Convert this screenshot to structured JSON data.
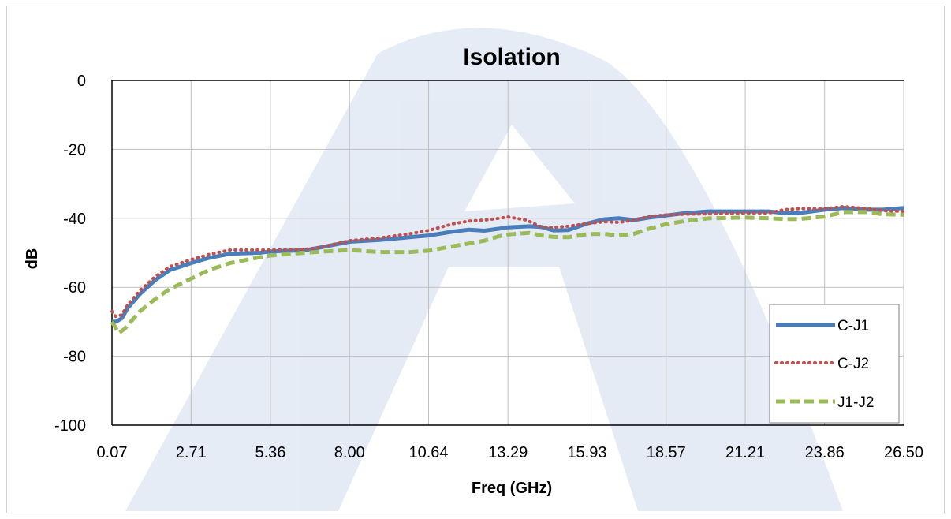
{
  "chart_data": {
    "type": "line",
    "title": "Isolation",
    "xlabel": "Freq (GHz)",
    "ylabel": "dB",
    "xlim": [
      0.07,
      26.5
    ],
    "ylim": [
      -100,
      0
    ],
    "x_ticks": [
      "0.07",
      "2.71",
      "5.36",
      "8.00",
      "10.64",
      "13.29",
      "15.93",
      "18.57",
      "21.21",
      "23.86",
      "26.50"
    ],
    "y_ticks": [
      "0",
      "-20",
      "-40",
      "-60",
      "-80",
      "-100"
    ],
    "grid": true,
    "legend_position": "bottom-right",
    "series": [
      {
        "name": "C-J1",
        "color": "#4a7ebb",
        "style": "solid",
        "points": [
          [
            0.07,
            -70
          ],
          [
            0.2,
            -70
          ],
          [
            0.4,
            -69
          ],
          [
            0.6,
            -66
          ],
          [
            1.0,
            -62
          ],
          [
            1.5,
            -58
          ],
          [
            2.0,
            -55
          ],
          [
            2.71,
            -53
          ],
          [
            3.3,
            -51.5
          ],
          [
            4.0,
            -50.3
          ],
          [
            5.0,
            -50
          ],
          [
            5.36,
            -49.6
          ],
          [
            6.5,
            -49.3
          ],
          [
            7.0,
            -48.5
          ],
          [
            8.0,
            -46.8
          ],
          [
            9.0,
            -46.3
          ],
          [
            10.0,
            -45.5
          ],
          [
            10.64,
            -45
          ],
          [
            11.5,
            -43.8
          ],
          [
            12.0,
            -43.3
          ],
          [
            12.5,
            -43.6
          ],
          [
            13.0,
            -43
          ],
          [
            13.29,
            -42.6
          ],
          [
            14.0,
            -42.3
          ],
          [
            14.4,
            -42.5
          ],
          [
            14.8,
            -43.5
          ],
          [
            15.3,
            -43.4
          ],
          [
            15.93,
            -41.5
          ],
          [
            16.5,
            -40.3
          ],
          [
            17.0,
            -40
          ],
          [
            17.5,
            -40.5
          ],
          [
            18.0,
            -39.8
          ],
          [
            18.57,
            -39.2
          ],
          [
            19.2,
            -38.5
          ],
          [
            20.0,
            -38
          ],
          [
            21.21,
            -38
          ],
          [
            22.0,
            -38
          ],
          [
            22.5,
            -38.5
          ],
          [
            23.0,
            -38.5
          ],
          [
            23.86,
            -37.5
          ],
          [
            24.5,
            -37
          ],
          [
            25.3,
            -37.5
          ],
          [
            25.8,
            -37.5
          ],
          [
            26.5,
            -37
          ]
        ]
      },
      {
        "name": "C-J2",
        "color": "#c0504d",
        "style": "dotted",
        "points": [
          [
            0.07,
            -67
          ],
          [
            0.2,
            -68.5
          ],
          [
            0.4,
            -68
          ],
          [
            0.6,
            -65
          ],
          [
            1.0,
            -61
          ],
          [
            1.5,
            -57
          ],
          [
            2.0,
            -54
          ],
          [
            2.71,
            -52
          ],
          [
            3.3,
            -50.5
          ],
          [
            4.0,
            -49.2
          ],
          [
            5.0,
            -49.2
          ],
          [
            5.36,
            -49.2
          ],
          [
            6.5,
            -49
          ],
          [
            7.0,
            -48.5
          ],
          [
            8.0,
            -46.5
          ],
          [
            9.0,
            -45.7
          ],
          [
            10.0,
            -44.5
          ],
          [
            10.64,
            -43.5
          ],
          [
            11.5,
            -41.5
          ],
          [
            12.0,
            -40.8
          ],
          [
            12.5,
            -40.5
          ],
          [
            13.0,
            -40
          ],
          [
            13.29,
            -39.6
          ],
          [
            13.9,
            -40.5
          ],
          [
            14.4,
            -42.5
          ],
          [
            14.8,
            -42.6
          ],
          [
            15.3,
            -42.3
          ],
          [
            15.93,
            -41.5
          ],
          [
            16.5,
            -41
          ],
          [
            17.0,
            -41.2
          ],
          [
            17.5,
            -40.5
          ],
          [
            18.0,
            -39.5
          ],
          [
            18.57,
            -39
          ],
          [
            19.2,
            -38.8
          ],
          [
            20.0,
            -38.7
          ],
          [
            21.21,
            -38.5
          ],
          [
            22.0,
            -38.5
          ],
          [
            22.5,
            -37.5
          ],
          [
            23.0,
            -37.2
          ],
          [
            23.86,
            -37.2
          ],
          [
            24.5,
            -36.6
          ],
          [
            25.3,
            -37.2
          ],
          [
            25.8,
            -37.8
          ],
          [
            26.5,
            -38
          ]
        ]
      },
      {
        "name": "J1-J2",
        "color": "#9bbb59",
        "style": "dashed",
        "points": [
          [
            0.07,
            -70
          ],
          [
            0.3,
            -73.3
          ],
          [
            0.5,
            -72
          ],
          [
            1.0,
            -67
          ],
          [
            1.5,
            -63.5
          ],
          [
            2.0,
            -60.5
          ],
          [
            2.71,
            -57.5
          ],
          [
            3.3,
            -55
          ],
          [
            4.0,
            -53
          ],
          [
            5.0,
            -51.3
          ],
          [
            5.36,
            -50.8
          ],
          [
            6.5,
            -50
          ],
          [
            7.0,
            -49.7
          ],
          [
            8.0,
            -49.2
          ],
          [
            9.0,
            -49.8
          ],
          [
            10.0,
            -49.8
          ],
          [
            10.64,
            -49.4
          ],
          [
            11.5,
            -48
          ],
          [
            12.0,
            -47.3
          ],
          [
            12.5,
            -46.5
          ],
          [
            13.0,
            -45.2
          ],
          [
            13.29,
            -44.7
          ],
          [
            14.0,
            -44.2
          ],
          [
            14.4,
            -45
          ],
          [
            14.8,
            -45.4
          ],
          [
            15.3,
            -45.5
          ],
          [
            15.93,
            -44.6
          ],
          [
            16.5,
            -44.5
          ],
          [
            17.0,
            -45
          ],
          [
            17.5,
            -44.5
          ],
          [
            18.0,
            -43
          ],
          [
            18.57,
            -41.7
          ],
          [
            19.2,
            -40.8
          ],
          [
            20.0,
            -40
          ],
          [
            21.21,
            -39.8
          ],
          [
            22.0,
            -40
          ],
          [
            22.5,
            -40.2
          ],
          [
            23.0,
            -40.2
          ],
          [
            23.86,
            -39.5
          ],
          [
            24.5,
            -38.2
          ],
          [
            25.3,
            -38.2
          ],
          [
            25.8,
            -38.8
          ],
          [
            26.5,
            -39
          ]
        ]
      }
    ]
  }
}
